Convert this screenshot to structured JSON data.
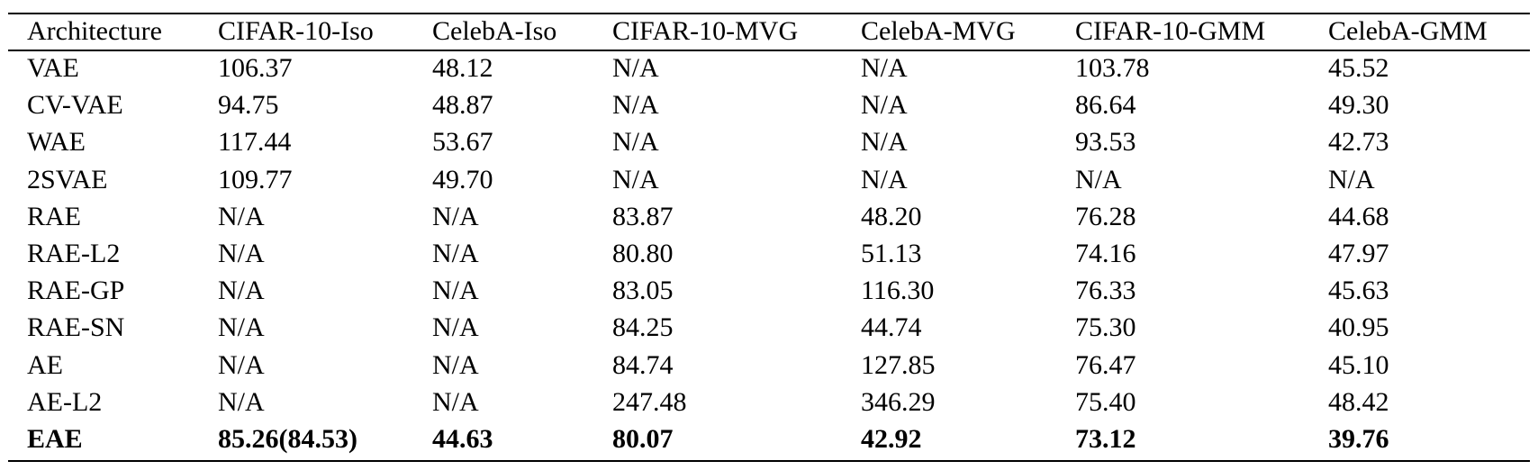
{
  "table": {
    "header": [
      "Architecture",
      "CIFAR-10-Iso",
      "CelebA-Iso",
      "CIFAR-10-MVG",
      "CelebA-MVG",
      "CIFAR-10-GMM",
      "CelebA-GMM"
    ],
    "rows": [
      [
        "VAE",
        "106.37",
        "48.12",
        "N/A",
        "N/A",
        "103.78",
        "45.52"
      ],
      [
        "CV-VAE",
        "94.75",
        "48.87",
        "N/A",
        "N/A",
        "86.64",
        "49.30"
      ],
      [
        "WAE",
        "117.44",
        "53.67",
        "N/A",
        "N/A",
        "93.53",
        "42.73"
      ],
      [
        "2SVAE",
        "109.77",
        "49.70",
        "N/A",
        "N/A",
        "N/A",
        "N/A"
      ],
      [
        "RAE",
        "N/A",
        "N/A",
        "83.87",
        "48.20",
        "76.28",
        "44.68"
      ],
      [
        "RAE-L2",
        "N/A",
        "N/A",
        "80.80",
        "51.13",
        "74.16",
        "47.97"
      ],
      [
        "RAE-GP",
        "N/A",
        "N/A",
        "83.05",
        "116.30",
        "76.33",
        "45.63"
      ],
      [
        "RAE-SN",
        "N/A",
        "N/A",
        "84.25",
        "44.74",
        "75.30",
        "40.95"
      ],
      [
        "AE",
        "N/A",
        "N/A",
        "84.74",
        "127.85",
        "76.47",
        "45.10"
      ],
      [
        "AE-L2",
        "N/A",
        "N/A",
        "247.48",
        "346.29",
        "75.40",
        "48.42"
      ],
      [
        "EAE",
        "85.26(84.53)",
        "44.63",
        "80.07",
        "42.92",
        "73.12",
        "39.76"
      ]
    ],
    "bold_rows": [
      10
    ]
  }
}
